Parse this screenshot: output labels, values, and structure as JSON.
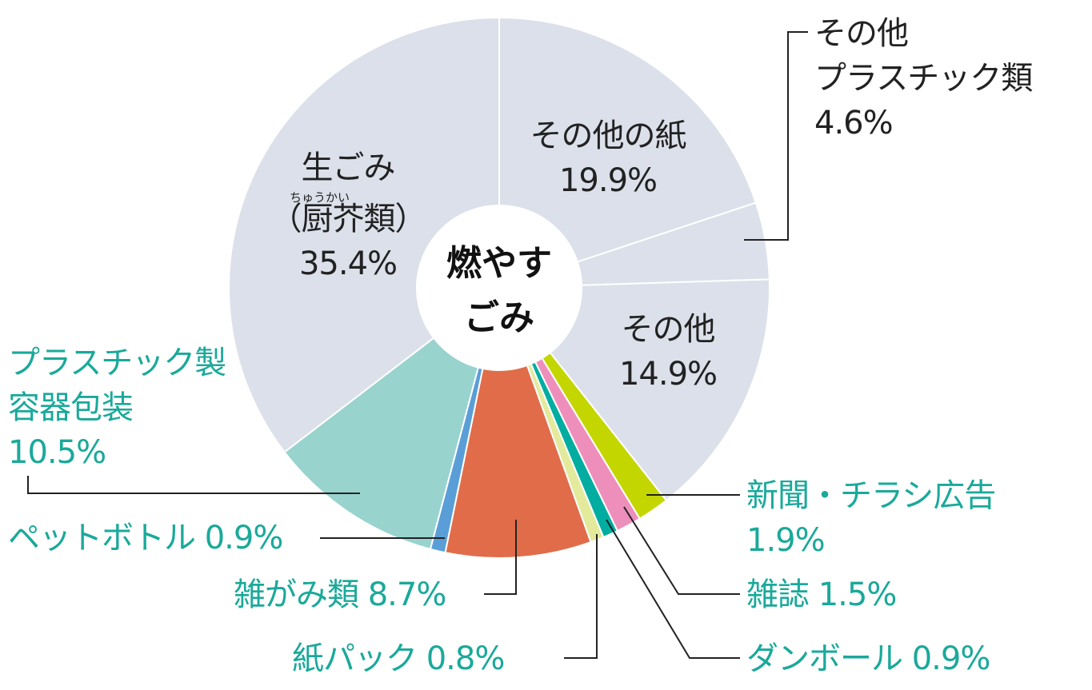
{
  "chart_data": {
    "type": "pie",
    "donut": true,
    "center_label": [
      "燃やす",
      "ごみ"
    ],
    "start": "12 o'clock, clockwise",
    "slices": [
      {
        "label": [
          "その他の紙"
        ],
        "value": 19.9,
        "value_label": "19.9%",
        "color": "#dce0ea"
      },
      {
        "label": [
          "その他",
          "プラスチック類"
        ],
        "value": 4.6,
        "value_label": "4.6%",
        "color": "#dce0ea"
      },
      {
        "label": [
          "その他"
        ],
        "value": 14.9,
        "value_label": "14.9%",
        "color": "#dce0ea"
      },
      {
        "label": [
          "新聞・チラシ広告"
        ],
        "value": 1.9,
        "value_label": "1.9%",
        "color": "#c4d600"
      },
      {
        "label": [
          "雑誌"
        ],
        "value": 1.5,
        "value_label": "1.5%",
        "color": "#ee8fbb"
      },
      {
        "label": [
          "ダンボール"
        ],
        "value": 0.9,
        "value_label": "0.9%",
        "color": "#00ada0"
      },
      {
        "label": [
          "紙パック"
        ],
        "value": 0.8,
        "value_label": "0.8%",
        "color": "#e4ea9c"
      },
      {
        "label": [
          "雑がみ類"
        ],
        "value": 8.7,
        "value_label": "8.7%",
        "color": "#e16c4a"
      },
      {
        "label": [
          "ペットボトル"
        ],
        "value": 0.9,
        "value_label": "0.9%",
        "color": "#5a9ed8"
      },
      {
        "label": [
          "プラスチック製",
          "容器包装"
        ],
        "value": 10.5,
        "value_label": "10.5%",
        "color": "#98d3ce"
      },
      {
        "label": [
          "生ごみ",
          "（厨芥類）"
        ],
        "ruby": "ちゅうかい",
        "value": 35.4,
        "value_label": "35.4%",
        "color": "#dce0ea"
      }
    ],
    "label_color_colored_slices": "#1aa99a",
    "label_color_gray_slices": "#222222"
  }
}
